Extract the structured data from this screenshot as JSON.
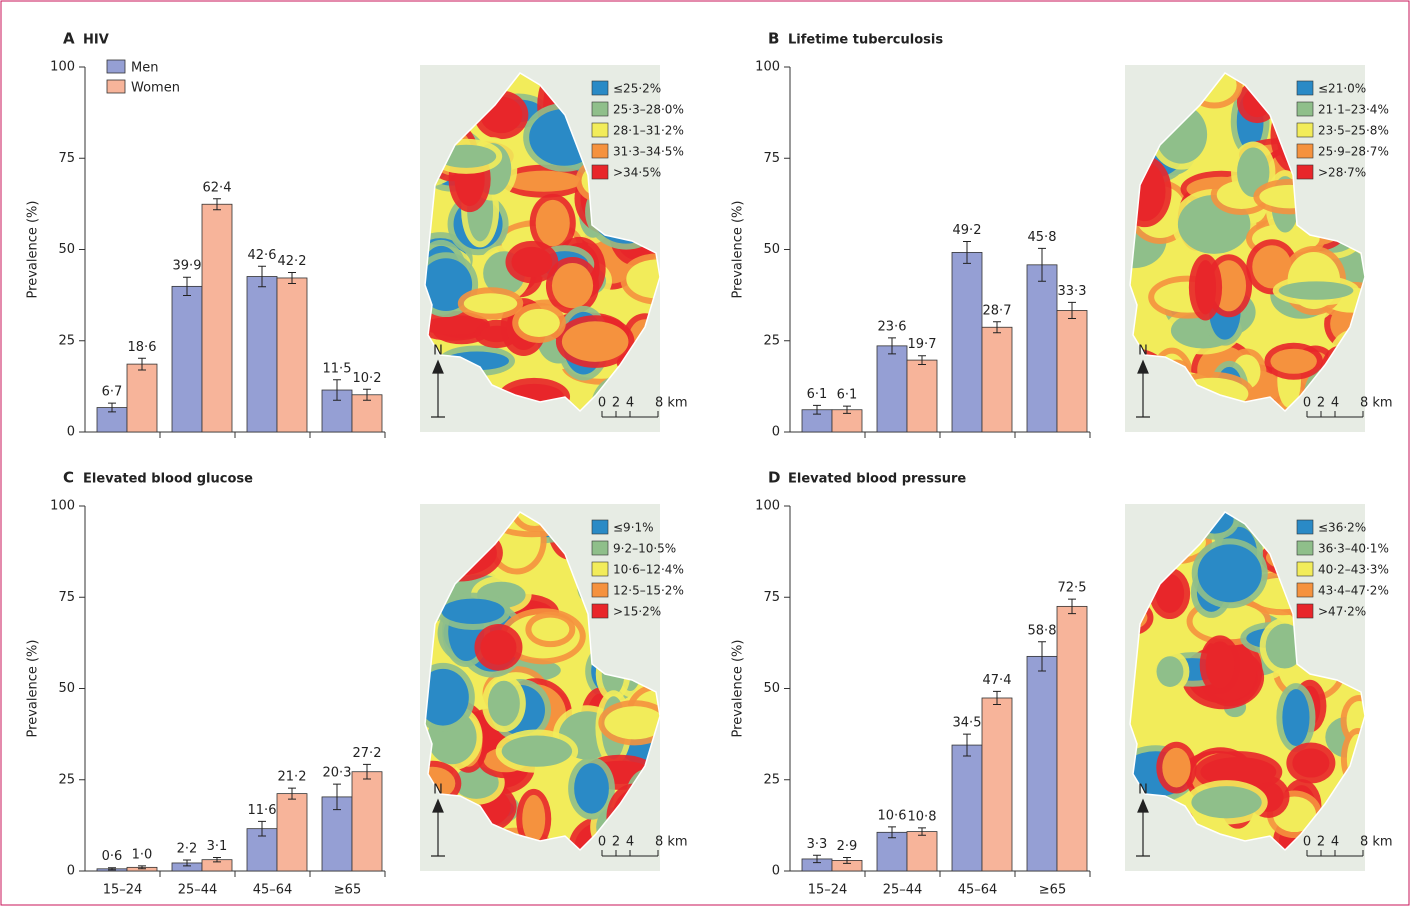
{
  "chart_data": [
    {
      "type": "bar",
      "panel": "A",
      "title": "HIV",
      "ylabel": "Prevalence (%)",
      "ylim": [
        0,
        100
      ],
      "yticks": [
        0,
        25,
        50,
        75,
        100
      ],
      "legend": "upper left",
      "categories": [
        null,
        null,
        null,
        null
      ],
      "series": [
        {
          "name": "Men",
          "color": "#959fd4",
          "values": [
            6.7,
            39.9,
            42.6,
            11.5
          ],
          "value_labels": [
            "6·7",
            "39·9",
            "42·6",
            "11·5"
          ],
          "errors": [
            1.2,
            2.5,
            2.8,
            2.8
          ]
        },
        {
          "name": "Women",
          "color": "#f7b49a",
          "values": [
            18.6,
            62.4,
            42.2,
            10.2
          ],
          "value_labels": [
            "18·6",
            "62·4",
            "42·2",
            "10·2"
          ],
          "errors": [
            1.6,
            1.5,
            1.5,
            1.5
          ]
        }
      ],
      "map": {
        "legend": [
          "≤25·2%",
          "25·3–28·0%",
          "28·1–31·2%",
          "31·3–34·5%",
          ">34·5%"
        ],
        "colors": [
          "#2a8ac6",
          "#8fbf8a",
          "#f2ec5a",
          "#f5923e",
          "#e8262a"
        ],
        "scale": [
          "0",
          "2",
          "4",
          "8 km"
        ],
        "north": "N"
      }
    },
    {
      "type": "bar",
      "panel": "B",
      "title": "Lifetime tuberculosis",
      "ylabel": "Prevalence (%)",
      "ylim": [
        0,
        100
      ],
      "yticks": [
        0,
        25,
        50,
        75,
        100
      ],
      "categories": [
        null,
        null,
        null,
        null
      ],
      "series": [
        {
          "color": "#959fd4",
          "values": [
            6.1,
            23.6,
            49.2,
            45.8
          ],
          "value_labels": [
            "6·1",
            "23·6",
            "49·2",
            "45·8"
          ],
          "errors": [
            1.2,
            2.2,
            3,
            4.5
          ]
        },
        {
          "color": "#f7b49a",
          "values": [
            6.1,
            19.7,
            28.7,
            33.3
          ],
          "value_labels": [
            "6·1",
            "19·7",
            "28·7",
            "33·3"
          ],
          "errors": [
            1,
            1.2,
            1.5,
            2.2
          ]
        }
      ],
      "map": {
        "legend": [
          "≤21·0%",
          "21·1–23·4%",
          "23·5–25·8%",
          "25·9–28·7%",
          ">28·7%"
        ],
        "colors": [
          "#2a8ac6",
          "#8fbf8a",
          "#f2ec5a",
          "#f5923e",
          "#e8262a"
        ],
        "scale": [
          "0",
          "2",
          "4",
          "8 km"
        ],
        "north": "N"
      }
    },
    {
      "type": "bar",
      "panel": "C",
      "title": "Elevated blood glucose",
      "ylabel": "Prevalence (%)",
      "ylim": [
        0,
        100
      ],
      "yticks": [
        0,
        25,
        50,
        75,
        100
      ],
      "categories": [
        "15–24",
        "25–44",
        "45–64",
        "≥65"
      ],
      "series": [
        {
          "color": "#959fd4",
          "values": [
            0.6,
            2.2,
            11.6,
            20.3
          ],
          "value_labels": [
            "0·6",
            "2·2",
            "11·6",
            "20·3"
          ],
          "errors": [
            0.3,
            0.8,
            2,
            3.5
          ]
        },
        {
          "color": "#f7b49a",
          "values": [
            1.0,
            3.1,
            21.2,
            27.2
          ],
          "value_labels": [
            "1·0",
            "3·1",
            "21·2",
            "27·2"
          ],
          "errors": [
            0.4,
            0.6,
            1.5,
            2
          ]
        }
      ],
      "map": {
        "legend": [
          "≤9·1%",
          "9·2–10·5%",
          "10·6–12·4%",
          "12·5–15·2%",
          ">15·2%"
        ],
        "colors": [
          "#2a8ac6",
          "#8fbf8a",
          "#f2ec5a",
          "#f5923e",
          "#e8262a"
        ],
        "scale": [
          "0",
          "2",
          "4",
          "8 km"
        ],
        "north": "N"
      }
    },
    {
      "type": "bar",
      "panel": "D",
      "title": "Elevated blood pressure",
      "ylabel": "Prevalence (%)",
      "ylim": [
        0,
        100
      ],
      "yticks": [
        0,
        25,
        50,
        75,
        100
      ],
      "categories": [
        "15–24",
        "25–44",
        "45–64",
        "≥65"
      ],
      "series": [
        {
          "color": "#959fd4",
          "values": [
            3.3,
            10.6,
            34.5,
            58.8
          ],
          "value_labels": [
            "3·3",
            "10·6",
            "34·5",
            "58·8"
          ],
          "errors": [
            1,
            1.5,
            3,
            4
          ]
        },
        {
          "color": "#f7b49a",
          "values": [
            2.9,
            10.8,
            47.4,
            72.5
          ],
          "value_labels": [
            "2·9",
            "10·8",
            "47·4",
            "72·5"
          ],
          "errors": [
            0.8,
            1,
            1.8,
            2
          ]
        }
      ],
      "map": {
        "legend": [
          "≤36·2%",
          "36·3–40·1%",
          "40·2–43·3%",
          "43·4–47·2%",
          ">47·2%"
        ],
        "colors": [
          "#2a8ac6",
          "#8fbf8a",
          "#f2ec5a",
          "#f5923e",
          "#e8262a"
        ],
        "scale": [
          "0",
          "2",
          "4",
          "8 km"
        ],
        "north": "N"
      }
    }
  ]
}
